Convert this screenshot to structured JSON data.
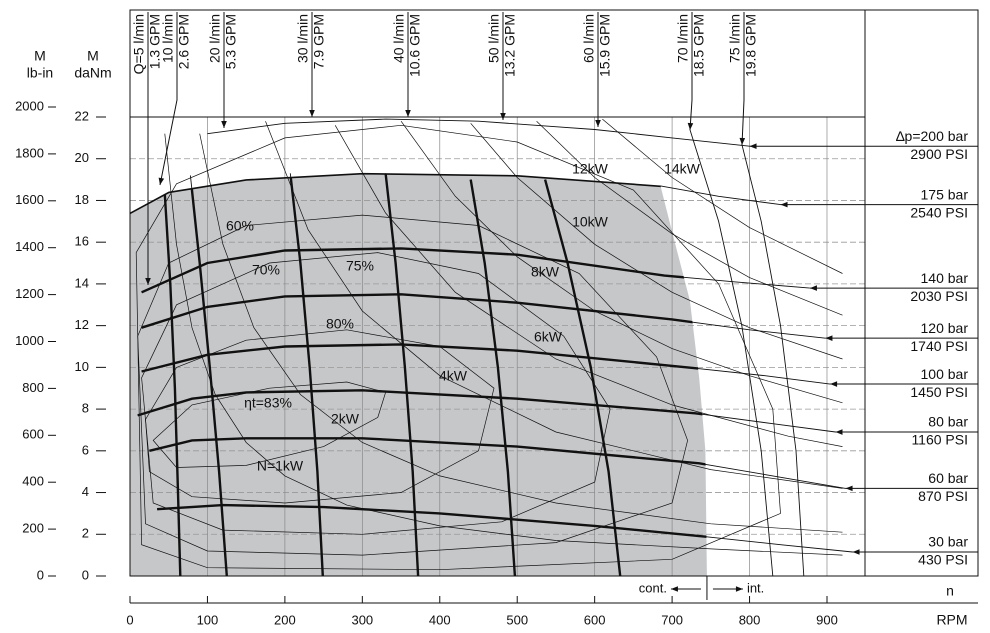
{
  "chart_data": {
    "type": "line",
    "y_label": "M",
    "y_unit": "daNm",
    "y2_label": "M",
    "y2_unit": "lb-in",
    "x_symbol": "n",
    "x_label": "RPM",
    "xlim": [
      0,
      1095
    ],
    "xticks": [
      0,
      100,
      200,
      300,
      400,
      500,
      600,
      700,
      800,
      900
    ],
    "ylim": [
      0,
      22
    ],
    "yticks": [
      0,
      2,
      4,
      6,
      8,
      10,
      12,
      14,
      16,
      18,
      20,
      22
    ],
    "y2lim": [
      0,
      2000
    ],
    "y2ticks": [
      0,
      200,
      400,
      600,
      800,
      1000,
      1200,
      1400,
      1600,
      1800,
      2000
    ],
    "grid": true,
    "line_color": "#111111",
    "continuous_region": {
      "color": "#c6c7c9",
      "x": [
        0,
        0,
        50,
        150,
        300,
        500,
        685,
        700,
        723,
        735,
        743,
        745
      ],
      "y": [
        0,
        17.4,
        18.4,
        19.0,
        19.3,
        19.2,
        18.7,
        16.5,
        13.2,
        9.5,
        6,
        0
      ]
    },
    "cont_label": "cont.",
    "int_label": "int.",
    "pressure": [
      {
        "name": "∆p=200 bar",
        "psi": "2900 PSI",
        "x": [
          100,
          200,
          330,
          450,
          600,
          700,
          800
        ],
        "y": [
          21.2,
          21.7,
          21.9,
          21.8,
          21.4,
          21.0,
          20.6
        ]
      },
      {
        "name": "175 bar",
        "psi": "2540 PSI",
        "x": [
          0,
          50,
          150,
          300,
          500,
          685,
          760,
          840
        ],
        "y": [
          17.4,
          18.4,
          19.0,
          19.3,
          19.2,
          18.7,
          18.2,
          17.8
        ]
      },
      {
        "name": "140 bar",
        "psi": "2030 PSI",
        "x": [
          15,
          100,
          200,
          350,
          500,
          690,
          780,
          878
        ],
        "y": [
          13.6,
          15.0,
          15.6,
          15.7,
          15.4,
          14.4,
          14.1,
          13.8
        ]
      },
      {
        "name": "120 bar",
        "psi": "1740 PSI",
        "x": [
          15,
          100,
          200,
          350,
          500,
          700,
          800,
          898
        ],
        "y": [
          11.9,
          12.9,
          13.4,
          13.5,
          13.1,
          12.3,
          11.8,
          11.4
        ]
      },
      {
        "name": "100 bar",
        "psi": "1450 PSI",
        "x": [
          15,
          100,
          200,
          350,
          500,
          720,
          820,
          904
        ],
        "y": [
          9.8,
          10.6,
          11.0,
          11.1,
          10.8,
          10.0,
          9.6,
          9.2
        ]
      },
      {
        "name": "80 bar",
        "psi": "1160 PSI",
        "x": [
          10,
          80,
          150,
          300,
          500,
          730,
          830,
          911
        ],
        "y": [
          7.7,
          8.5,
          8.8,
          8.9,
          8.5,
          7.8,
          7.3,
          6.9
        ]
      },
      {
        "name": "60 bar",
        "psi": "870 PSI",
        "x": [
          25,
          80,
          150,
          300,
          500,
          735,
          830,
          924
        ],
        "y": [
          6.0,
          6.5,
          6.6,
          6.6,
          6.2,
          5.4,
          4.8,
          4.2
        ]
      },
      {
        "name": "30 bar",
        "psi": "430 PSI",
        "x": [
          35,
          120,
          250,
          400,
          600,
          740,
          840,
          933
        ],
        "y": [
          3.2,
          3.4,
          3.3,
          3.0,
          2.4,
          1.9,
          1.5,
          1.15
        ]
      }
    ],
    "flow": [
      {
        "name": "Q=5 l/min",
        "gpm": "1.3 GPM"
      },
      {
        "name": "10 l/min",
        "gpm": "2.6 GPM",
        "x": [
          45,
          52,
          58,
          62,
          65
        ],
        "y": [
          18.3,
          14,
          9,
          4,
          0
        ]
      },
      {
        "name": "20 l/min",
        "gpm": "5.3 GPM",
        "x": [
          78,
          90,
          103,
          115,
          125
        ],
        "y": [
          19.2,
          15,
          10,
          5,
          0
        ]
      },
      {
        "name": "30 l/min",
        "gpm": "7.9 GPM",
        "x": [
          207,
          220,
          232,
          242,
          249
        ],
        "y": [
          19.3,
          15,
          10,
          5,
          0
        ]
      },
      {
        "name": "40 l/min",
        "gpm": "10.6 GPM",
        "x": [
          330,
          343,
          355,
          365,
          372
        ],
        "y": [
          19.3,
          15,
          10,
          5,
          0
        ]
      },
      {
        "name": "50 l/min",
        "gpm": "13.2 GPM",
        "x": [
          440,
          458,
          475,
          488,
          497
        ],
        "y": [
          19.0,
          15,
          10,
          5,
          0
        ]
      },
      {
        "name": "60 l/min",
        "gpm": "15.9 GPM",
        "x": [
          536,
          565,
          595,
          618,
          633
        ],
        "y": [
          19.0,
          15,
          10,
          5,
          0
        ]
      },
      {
        "name": "70 l/min",
        "gpm": "18.5 GPM",
        "x": [
          723,
          760,
          790,
          815,
          830
        ],
        "y": [
          21.4,
          17,
          12,
          6,
          0
        ]
      },
      {
        "name": "75 l/min",
        "gpm": "19.8 GPM",
        "x": [
          790,
          815,
          840,
          860,
          870
        ],
        "y": [
          20.7,
          17,
          12,
          6,
          0
        ]
      }
    ],
    "power": [
      {
        "name": "12kW",
        "x": [
          525,
          600,
          700,
          800,
          920
        ],
        "y": [
          21.8,
          19.1,
          16.4,
          14.3,
          12.5
        ]
      },
      {
        "name": "14kW",
        "x": [
          610,
          700,
          800,
          920
        ],
        "y": [
          21.9,
          19.1,
          16.7,
          14.5
        ]
      },
      {
        "name": "10kW",
        "x": [
          440,
          500,
          600,
          700,
          800,
          920
        ],
        "y": [
          21.7,
          19.1,
          15.9,
          13.6,
          11.9,
          10.4
        ]
      },
      {
        "name": "8kW",
        "x": [
          350,
          420,
          500,
          600,
          700,
          800,
          920
        ],
        "y": [
          21.8,
          18.2,
          15.3,
          12.7,
          10.9,
          9.6,
          8.3
        ]
      },
      {
        "name": "6kW",
        "x": [
          265,
          330,
          420,
          550,
          700,
          850,
          920
        ],
        "y": [
          21.6,
          17.4,
          13.6,
          10.4,
          8.2,
          6.7,
          6.2
        ]
      },
      {
        "name": "4kW",
        "x": [
          175,
          230,
          300,
          400,
          550,
          750,
          920
        ],
        "y": [
          21.8,
          16.6,
          12.7,
          9.6,
          6.9,
          5.1,
          4.2
        ]
      },
      {
        "name": "2kW",
        "x": [
          90,
          120,
          160,
          220,
          300,
          400,
          550,
          750,
          920
        ],
        "y": [
          21.2,
          15.9,
          11.9,
          8.7,
          6.4,
          4.8,
          3.5,
          2.5,
          2.1
        ]
      },
      {
        "name": "N=1kW",
        "x": [
          45,
          60,
          80,
          110,
          150,
          200,
          280,
          400,
          550,
          750,
          920
        ],
        "y": [
          21.2,
          15.9,
          11.9,
          8.7,
          6.4,
          4.8,
          3.4,
          2.4,
          1.7,
          1.3,
          1.0
        ]
      }
    ],
    "efficiency": [
      {
        "name": "60%",
        "x": [
          8,
          60,
          200,
          350,
          500,
          650,
          760,
          830,
          840,
          700,
          400,
          100,
          15
        ],
        "y": [
          15.5,
          18.8,
          21.0,
          21.6,
          20.8,
          18.5,
          14.0,
          8.0,
          3.0,
          0.8,
          0.3,
          0.4,
          1.5
        ]
      },
      {
        "name": "70%",
        "x": [
          10,
          50,
          150,
          300,
          450,
          580,
          680,
          720,
          700,
          550,
          300,
          100,
          20
        ],
        "y": [
          11.5,
          15.0,
          16.8,
          17.3,
          16.8,
          14.5,
          10.5,
          6.5,
          3.5,
          1.6,
          1.0,
          1.2,
          2.5
        ]
      },
      {
        "name": "75%",
        "x": [
          15,
          60,
          180,
          320,
          450,
          560,
          620,
          600,
          480,
          300,
          120,
          30
        ],
        "y": [
          9.5,
          13.0,
          15.0,
          15.5,
          14.5,
          11.5,
          8.0,
          4.5,
          2.6,
          2.0,
          2.2,
          3.5
        ]
      },
      {
        "name": "80%",
        "x": [
          20,
          60,
          150,
          280,
          400,
          470,
          450,
          350,
          200,
          80,
          25
        ],
        "y": [
          7.5,
          10.0,
          11.3,
          11.8,
          11.0,
          9.0,
          6.0,
          4.0,
          3.5,
          3.8,
          5.0
        ]
      },
      {
        "name": "ηt=83%",
        "x": [
          30,
          80,
          180,
          280,
          330,
          320,
          250,
          150,
          60
        ],
        "y": [
          6.5,
          8.2,
          9.0,
          9.3,
          8.8,
          7.6,
          6.2,
          5.3,
          5.2
        ]
      }
    ]
  }
}
